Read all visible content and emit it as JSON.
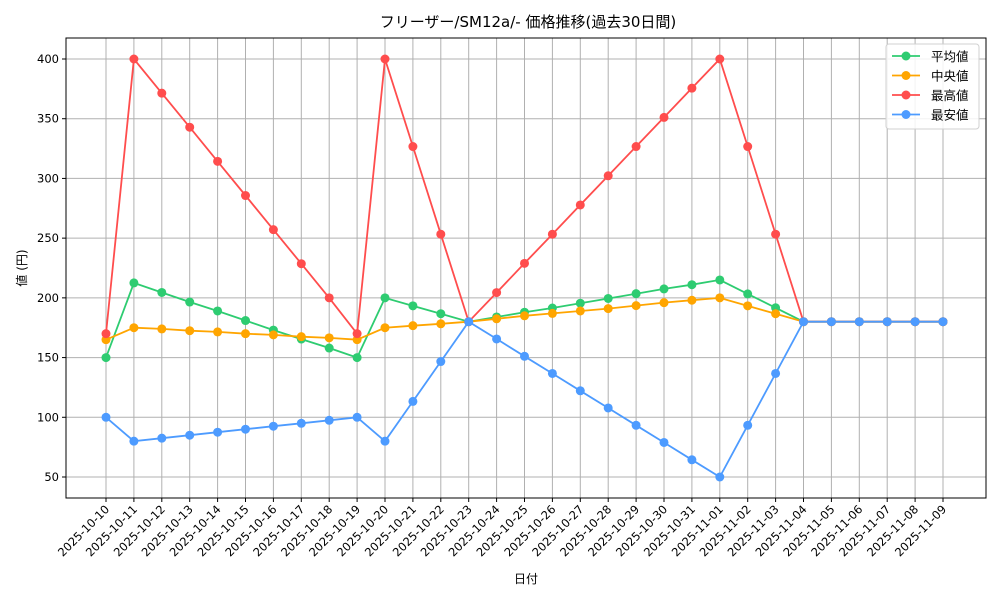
{
  "chart_data": {
    "type": "line",
    "title": "フリーザー/SM12a/- 価格推移(過去30日間)",
    "xlabel": "日付",
    "ylabel": "値 (円)",
    "ylim": [
      33,
      418
    ],
    "yticks": [
      50,
      100,
      150,
      200,
      250,
      300,
      350,
      400
    ],
    "grid": true,
    "legend_position": "upper right",
    "categories": [
      "2025-10-10",
      "2025-10-11",
      "2025-10-12",
      "2025-10-13",
      "2025-10-14",
      "2025-10-15",
      "2025-10-16",
      "2025-10-17",
      "2025-10-18",
      "2025-10-19",
      "2025-10-20",
      "2025-10-21",
      "2025-10-22",
      "2025-10-23",
      "2025-10-24",
      "2025-10-25",
      "2025-10-26",
      "2025-10-27",
      "2025-10-28",
      "2025-10-29",
      "2025-10-30",
      "2025-10-31",
      "2025-11-01",
      "2025-11-02",
      "2025-11-03",
      "2025-11-04",
      "2025-11-05",
      "2025-11-06",
      "2025-11-07",
      "2025-11-08",
      "2025-11-09"
    ],
    "series": [
      {
        "name": "平均値",
        "color": "#2ecc71",
        "values": [
          150,
          212.5,
          204.5,
          196.5,
          189,
          181,
          173,
          165.5,
          158,
          150,
          200,
          193.3,
          186.7,
          180,
          184,
          188,
          191.5,
          195.5,
          199.5,
          203.5,
          207.5,
          211,
          215,
          203.3,
          191.7,
          180,
          180,
          180,
          180,
          180,
          180
        ]
      },
      {
        "name": "中央値",
        "color": "#ffa500",
        "values": [
          165,
          175,
          174,
          172.5,
          171.5,
          170,
          169,
          167.5,
          166.5,
          165,
          175,
          176.7,
          178.3,
          180,
          182.5,
          185,
          187,
          189,
          191,
          193.5,
          196,
          198,
          200,
          193.3,
          186.7,
          180,
          180,
          180,
          180,
          180,
          180
        ]
      },
      {
        "name": "最高値",
        "color": "#ff4d4d",
        "values": [
          170,
          400,
          371.4,
          342.9,
          314.3,
          285.7,
          257.1,
          228.6,
          200,
          170,
          400,
          326.7,
          253.3,
          180,
          204.4,
          228.9,
          253.3,
          277.8,
          302.2,
          326.7,
          351.1,
          375.6,
          400,
          326.7,
          253.3,
          180,
          180,
          180,
          180,
          180,
          180
        ]
      },
      {
        "name": "最安値",
        "color": "#4d9bff",
        "values": [
          100,
          80,
          82.5,
          85,
          87.5,
          90,
          92.5,
          95,
          97.5,
          100,
          80,
          113.3,
          146.7,
          180,
          165.6,
          151.1,
          136.7,
          122.2,
          107.8,
          93.3,
          78.9,
          64.4,
          50,
          93.3,
          136.7,
          180,
          180,
          180,
          180,
          180,
          180
        ]
      }
    ]
  }
}
